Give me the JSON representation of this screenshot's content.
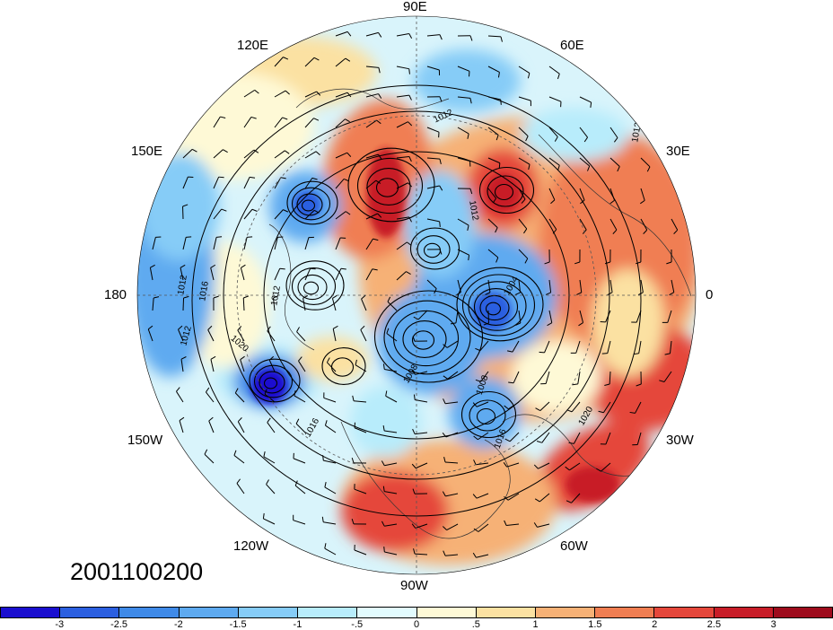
{
  "map": {
    "projection": "north-polar-stereographic",
    "date_label": "2001100200",
    "longitude_labels": [
      "90E",
      "60E",
      "30E",
      "0",
      "30W",
      "60W",
      "90W",
      "120W",
      "150W",
      "180",
      "150E",
      "120E"
    ],
    "contour_labels": [
      "1012",
      "1012",
      "1016",
      "1012",
      "1012",
      "1020",
      "1016",
      "1012",
      "1008",
      "1008",
      "1016",
      "1020",
      "1012",
      "1004"
    ],
    "fill_variable_colormap": "blue-white-red diverging",
    "overlays": [
      "sea-level-pressure contours",
      "wind barbs",
      "coastlines"
    ]
  },
  "colorbar": {
    "tick_labels": [
      "-3",
      "-2.5",
      "-2",
      "-1.5",
      "-1",
      "-.5",
      "0",
      ".5",
      "1",
      "1.5",
      "2",
      "2.5",
      "3"
    ],
    "colors": [
      "#1a0fcf",
      "#2b5fe0",
      "#3f8ae8",
      "#5eaaf0",
      "#86ccf7",
      "#b8ecfb",
      "#e2fbfe",
      "#fef9d6",
      "#fbe1a2",
      "#f6b176",
      "#f07e52",
      "#e5473b",
      "#c81d28",
      "#9e0b1c"
    ]
  }
}
